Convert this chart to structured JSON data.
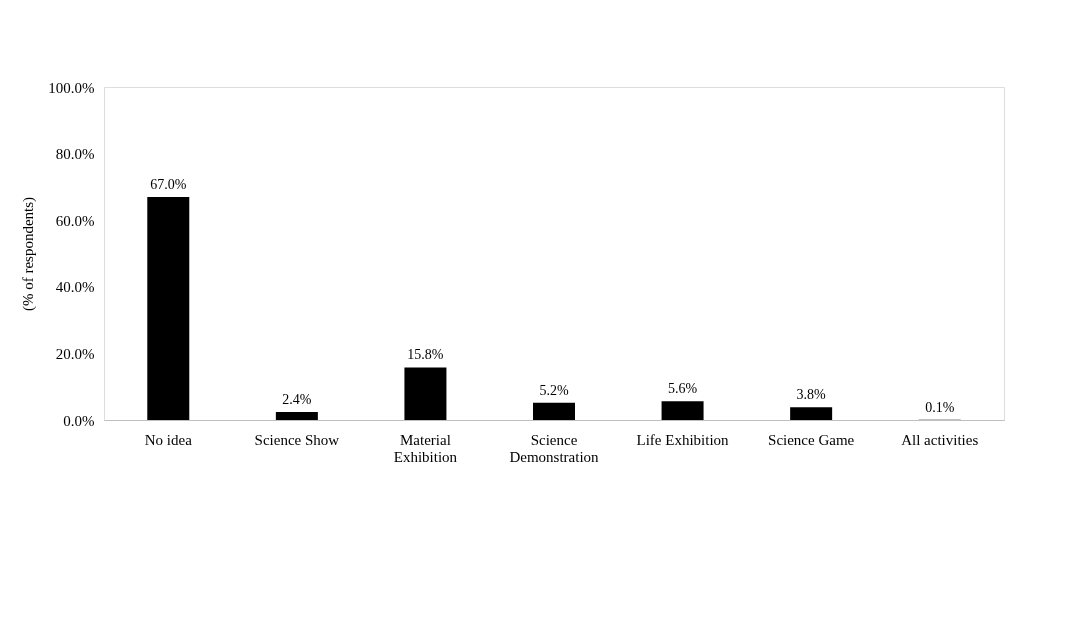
{
  "chart_data": {
    "type": "bar",
    "ylabel": "(% of respondents)",
    "categories": [
      "No idea",
      "Science Show",
      "Material Exhibition",
      "Science Demonstration",
      "Life Exhibition",
      "Science Game",
      "All activities"
    ],
    "values": [
      67.0,
      2.4,
      15.8,
      5.2,
      5.6,
      3.8,
      0.1
    ],
    "value_labels": [
      "67.0%",
      "2.4%",
      "15.8%",
      "5.2%",
      "5.6%",
      "3.8%",
      "0.1%"
    ],
    "color": "#000000",
    "ylim": [
      0,
      100
    ],
    "yticks": [
      {
        "value": 0,
        "label": "0.0%"
      },
      {
        "value": 20,
        "label": "20.0%"
      },
      {
        "value": 40,
        "label": "40.0%"
      },
      {
        "value": 60,
        "label": "60.0%"
      },
      {
        "value": 80,
        "label": "80.0%"
      },
      {
        "value": 100,
        "label": "100.0%"
      }
    ],
    "grid": false
  }
}
